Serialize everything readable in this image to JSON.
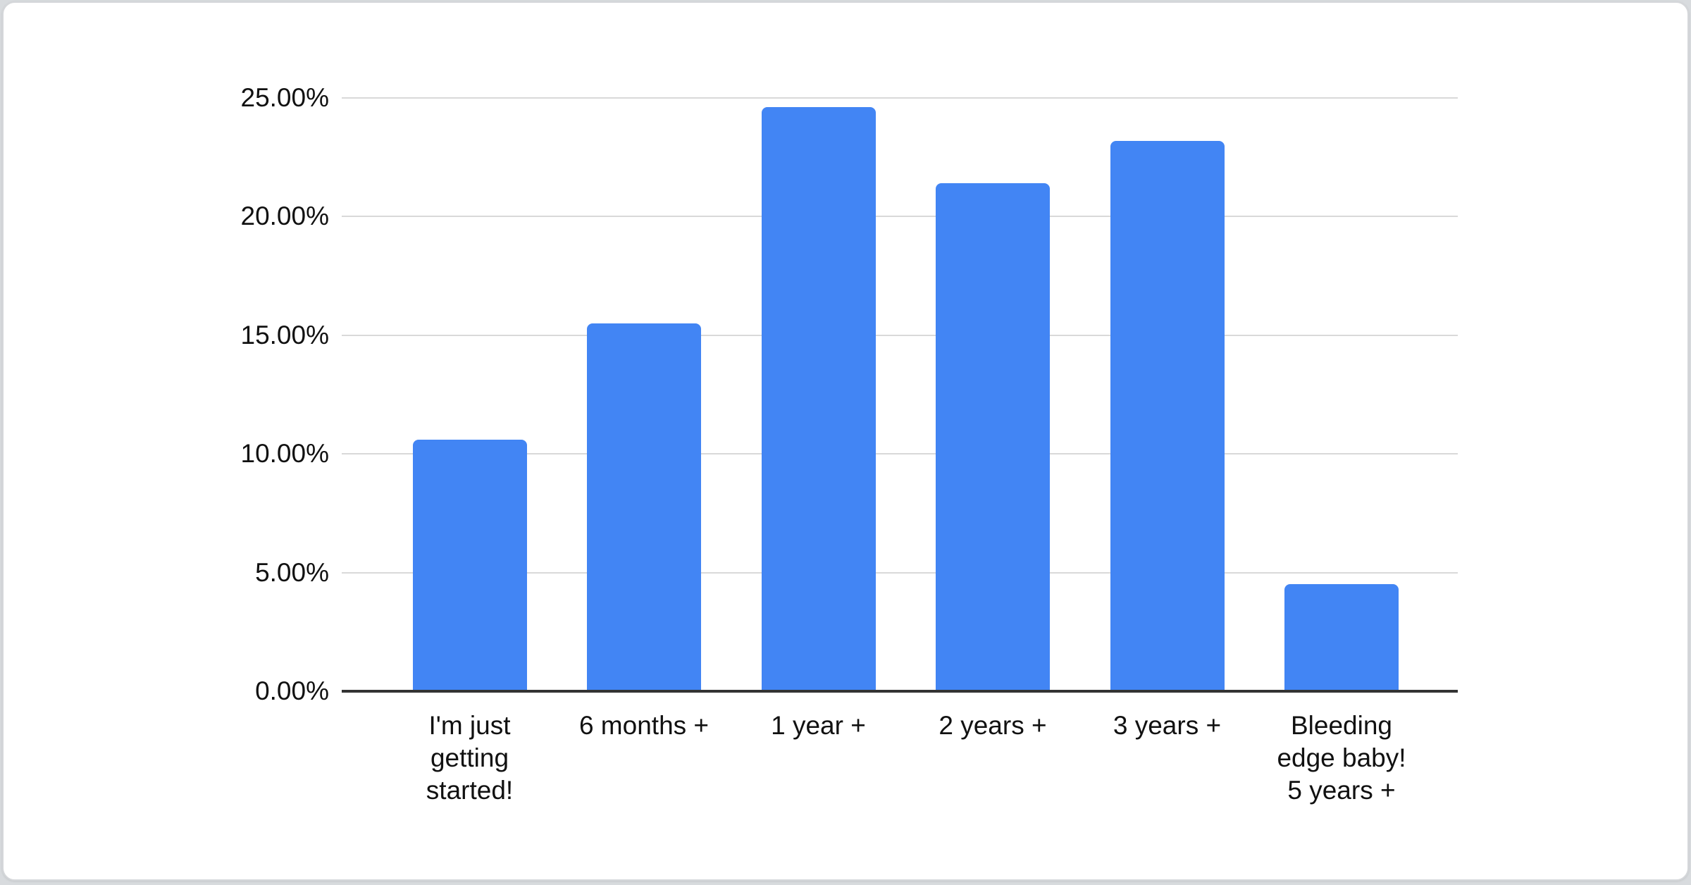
{
  "page": {
    "background_color": "#d8dbde",
    "card": {
      "background_color": "#ffffff",
      "border_color": "#d5d7da"
    }
  },
  "chart_data": {
    "type": "bar",
    "title": "",
    "categories": [
      "I'm just\ngetting\nstarted!",
      "6 months +",
      "1 year +",
      "2 years +",
      "3 years +",
      "Bleeding\nedge baby!\n5 years +"
    ],
    "values": [
      10.6,
      15.5,
      24.6,
      21.4,
      23.2,
      4.5
    ],
    "value_unit": "%",
    "xlabel": "",
    "ylabel": "",
    "ylim": [
      0,
      25
    ],
    "ytick_step": 5,
    "yticks": [
      "0.00%",
      "5.00%",
      "10.00%",
      "15.00%",
      "20.00%",
      "25.00%"
    ],
    "grid": true,
    "legend_position": "none",
    "colors": {
      "bar": "#4285f4",
      "gridline": "#d9d9d9",
      "axis_line": "#333333",
      "label_text": "#111111"
    }
  }
}
